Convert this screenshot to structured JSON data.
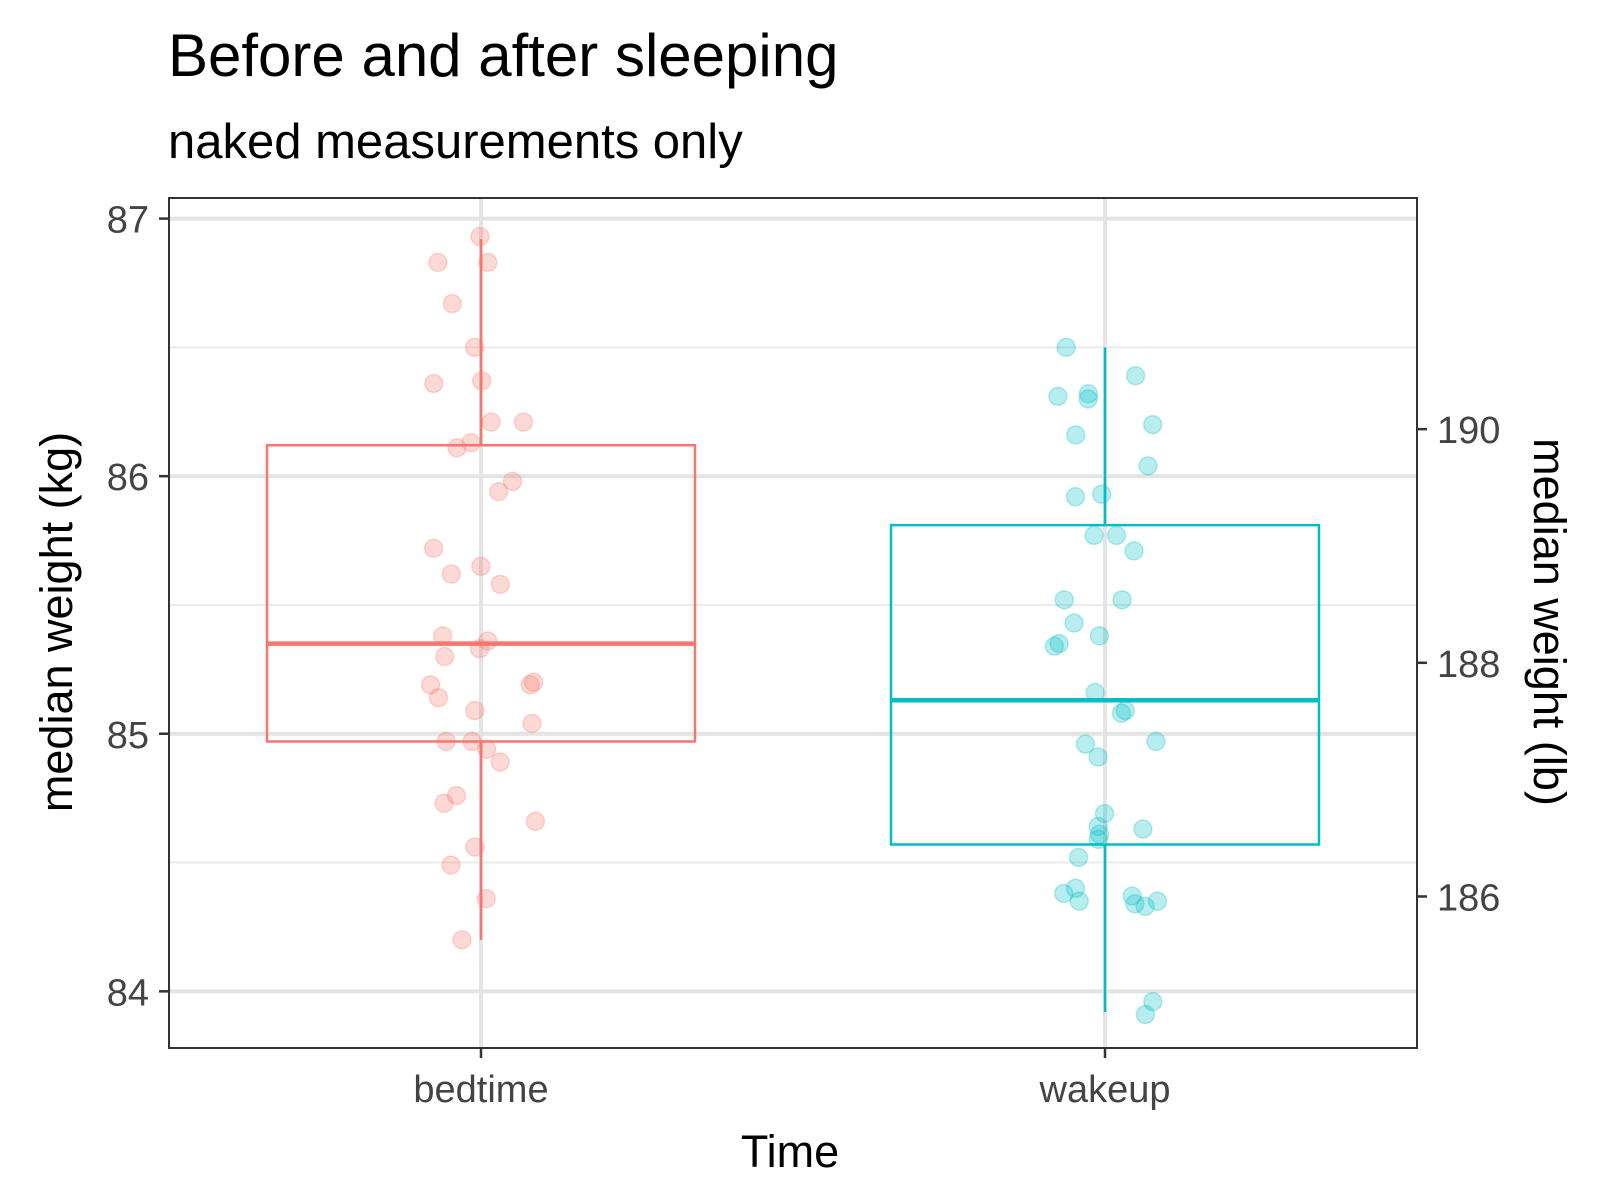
{
  "chart_data": {
    "type": "box",
    "title": "Before and after sleeping",
    "subtitle": "naked measurements only",
    "xlabel": "Time",
    "ylabel": "median weight (kg)",
    "ylabel_right": "median weight (lb)",
    "categories": [
      "bedtime",
      "wakeup"
    ],
    "ylim": [
      83.78,
      87.08
    ],
    "y_ticks": [
      "84",
      "85",
      "86",
      "87"
    ],
    "y_right_ticks": [
      "186",
      "188",
      "190"
    ],
    "grid": true,
    "legend": "none",
    "series": [
      {
        "category": "bedtime",
        "color": "#F8766D",
        "box": {
          "whisker_low": 84.2,
          "q1": 84.97,
          "median": 85.35,
          "q3": 86.12,
          "whisker_high": 86.92
        },
        "points": [
          86.93,
          86.83,
          86.83,
          86.67,
          86.5,
          86.37,
          86.36,
          86.21,
          86.21,
          86.13,
          86.11,
          85.98,
          85.94,
          85.72,
          85.65,
          85.62,
          85.58,
          85.38,
          85.36,
          85.33,
          85.3,
          85.19,
          85.19,
          85.2,
          85.14,
          85.09,
          85.04,
          84.97,
          84.97,
          84.94,
          84.89,
          84.76,
          84.73,
          84.66,
          84.56,
          84.49,
          84.36,
          84.2
        ]
      },
      {
        "category": "wakeup",
        "color": "#00BFC4",
        "box": {
          "whisker_low": 83.92,
          "q1": 84.57,
          "median": 85.13,
          "q3": 85.81,
          "whisker_high": 86.5
        },
        "points": [
          86.5,
          86.39,
          86.32,
          86.3,
          86.31,
          86.2,
          86.16,
          86.04,
          85.93,
          85.92,
          85.77,
          85.77,
          85.71,
          85.52,
          85.52,
          85.43,
          85.38,
          85.35,
          85.34,
          85.16,
          85.09,
          85.08,
          84.97,
          84.96,
          84.91,
          84.69,
          84.64,
          84.63,
          84.61,
          84.59,
          84.52,
          84.4,
          84.37,
          84.38,
          84.35,
          84.34,
          84.33,
          84.35,
          83.96,
          83.91
        ]
      }
    ]
  }
}
